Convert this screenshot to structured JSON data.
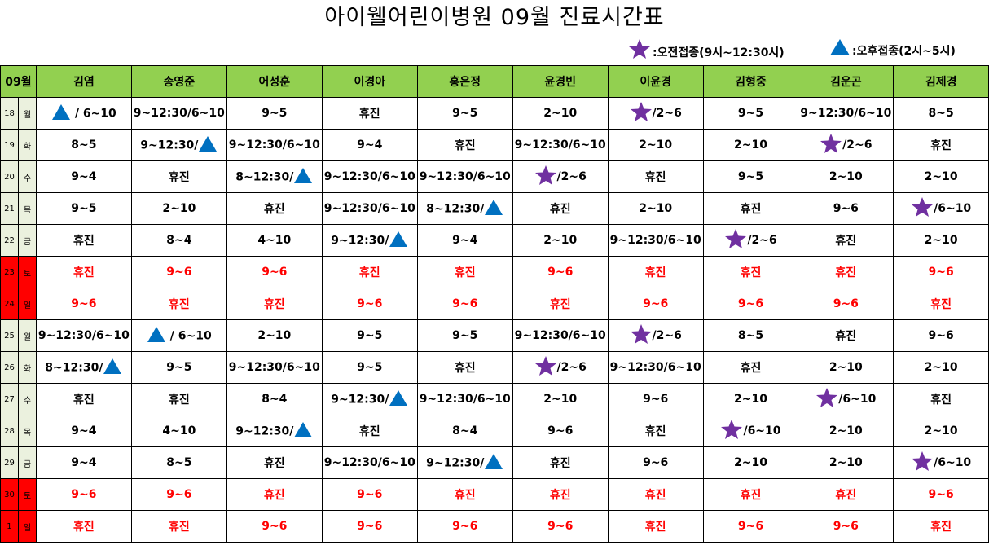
{
  "title": "아이웰어린이병원   09월   진료시간표",
  "legend": {
    "am_label": ":오전접종(9시~12:30시)",
    "pm_label": ":오후접종(2시~5시)",
    "am_icon": "star-icon",
    "pm_icon": "triangle-icon",
    "star_color": "#7030a0",
    "triangle_color": "#0070c0"
  },
  "header": {
    "month": "09월",
    "doctors": [
      "김염",
      "송영준",
      "어성훈",
      "이경아",
      "홍은정",
      "윤경빈",
      "이윤경",
      "김형중",
      "김운곤",
      "김제경"
    ]
  },
  "colors": {
    "header_bg": "#92d050",
    "weekday_bg": "#ebf1de",
    "weekend": "#ff0000"
  },
  "rows": [
    {
      "day": "18",
      "dow": "월",
      "weekend": false,
      "cells": [
        {
          "pre": "triangle",
          "text": " / 6~10"
        },
        {
          "text": "9~12:30/6~10"
        },
        {
          "text": "9~5"
        },
        {
          "text": "휴진"
        },
        {
          "text": "9~5"
        },
        {
          "text": "2~10"
        },
        {
          "pre": "star",
          "text": "/2~6"
        },
        {
          "text": "9~5"
        },
        {
          "text": "9~12:30/6~10"
        },
        {
          "text": "8~5"
        }
      ]
    },
    {
      "day": "19",
      "dow": "화",
      "weekend": false,
      "cells": [
        {
          "text": "8~5"
        },
        {
          "text": "9~12:30/",
          "post": "triangle"
        },
        {
          "text": "9~12:30/6~10"
        },
        {
          "text": "9~4"
        },
        {
          "text": "휴진"
        },
        {
          "text": "9~12:30/6~10"
        },
        {
          "text": "2~10"
        },
        {
          "text": "2~10"
        },
        {
          "pre": "star",
          "text": "/2~6"
        },
        {
          "text": "휴진"
        }
      ]
    },
    {
      "day": "20",
      "dow": "수",
      "weekend": false,
      "cells": [
        {
          "text": "9~4"
        },
        {
          "text": "휴진"
        },
        {
          "text": "8~12:30/",
          "post": "triangle"
        },
        {
          "text": "9~12:30/6~10"
        },
        {
          "text": "9~12:30/6~10"
        },
        {
          "pre": "star",
          "text": "/2~6"
        },
        {
          "text": "휴진"
        },
        {
          "text": "9~5"
        },
        {
          "text": "2~10"
        },
        {
          "text": "2~10"
        }
      ]
    },
    {
      "day": "21",
      "dow": "목",
      "weekend": false,
      "cells": [
        {
          "text": "9~5"
        },
        {
          "text": "2~10"
        },
        {
          "text": "휴진"
        },
        {
          "text": "9~12:30/6~10"
        },
        {
          "text": "8~12:30/",
          "post": "triangle"
        },
        {
          "text": "휴진"
        },
        {
          "text": "2~10"
        },
        {
          "text": "휴진"
        },
        {
          "text": "9~6"
        },
        {
          "pre": "star",
          "text": "/6~10"
        }
      ]
    },
    {
      "day": "22",
      "dow": "금",
      "weekend": false,
      "cells": [
        {
          "text": "휴진"
        },
        {
          "text": "8~4"
        },
        {
          "text": "4~10"
        },
        {
          "text": "9~12:30/",
          "post": "triangle"
        },
        {
          "text": "9~4"
        },
        {
          "text": "2~10"
        },
        {
          "text": "9~12:30/6~10"
        },
        {
          "pre": "star",
          "text": "/2~6"
        },
        {
          "text": "휴진"
        },
        {
          "text": "2~10"
        }
      ]
    },
    {
      "day": "23",
      "dow": "토",
      "weekend": true,
      "cells": [
        {
          "text": "휴진"
        },
        {
          "text": "9~6"
        },
        {
          "text": "9~6"
        },
        {
          "text": "휴진"
        },
        {
          "text": "휴진"
        },
        {
          "text": "9~6"
        },
        {
          "text": "휴진"
        },
        {
          "text": "휴진"
        },
        {
          "text": "휴진"
        },
        {
          "text": "9~6"
        }
      ]
    },
    {
      "day": "24",
      "dow": "일",
      "weekend": true,
      "cells": [
        {
          "text": "9~6"
        },
        {
          "text": "휴진"
        },
        {
          "text": "휴진"
        },
        {
          "text": "9~6"
        },
        {
          "text": "9~6"
        },
        {
          "text": "휴진"
        },
        {
          "text": "9~6"
        },
        {
          "text": "9~6"
        },
        {
          "text": "9~6"
        },
        {
          "text": "휴진"
        }
      ]
    },
    {
      "day": "25",
      "dow": "월",
      "weekend": false,
      "cells": [
        {
          "text": "9~12:30/6~10"
        },
        {
          "pre": "triangle",
          "text": " / 6~10"
        },
        {
          "text": "2~10"
        },
        {
          "text": "9~5"
        },
        {
          "text": "9~5"
        },
        {
          "text": "9~12:30/6~10"
        },
        {
          "pre": "star",
          "text": "/2~6"
        },
        {
          "text": "8~5"
        },
        {
          "text": "휴진"
        },
        {
          "text": "9~6"
        }
      ]
    },
    {
      "day": "26",
      "dow": "화",
      "weekend": false,
      "cells": [
        {
          "text": "8~12:30/",
          "post": "triangle"
        },
        {
          "text": "9~5"
        },
        {
          "text": "9~12:30/6~10"
        },
        {
          "text": "9~5"
        },
        {
          "text": "휴진"
        },
        {
          "pre": "star",
          "text": "/2~6"
        },
        {
          "text": "9~12:30/6~10"
        },
        {
          "text": "휴진"
        },
        {
          "text": "2~10"
        },
        {
          "text": "2~10"
        }
      ]
    },
    {
      "day": "27",
      "dow": "수",
      "weekend": false,
      "cells": [
        {
          "text": "휴진"
        },
        {
          "text": "휴진"
        },
        {
          "text": "8~4"
        },
        {
          "text": "9~12:30/",
          "post": "triangle"
        },
        {
          "text": "9~12:30/6~10"
        },
        {
          "text": "2~10"
        },
        {
          "text": "9~6"
        },
        {
          "text": "2~10"
        },
        {
          "pre": "star",
          "text": "/6~10"
        },
        {
          "text": "휴진"
        }
      ]
    },
    {
      "day": "28",
      "dow": "목",
      "weekend": false,
      "cells": [
        {
          "text": "9~4"
        },
        {
          "text": "4~10"
        },
        {
          "text": "9~12:30/",
          "post": "triangle"
        },
        {
          "text": "휴진"
        },
        {
          "text": "8~4"
        },
        {
          "text": "9~6"
        },
        {
          "text": "휴진"
        },
        {
          "pre": "star",
          "text": "/6~10"
        },
        {
          "text": "2~10"
        },
        {
          "text": "2~10"
        }
      ]
    },
    {
      "day": "29",
      "dow": "금",
      "weekend": false,
      "cells": [
        {
          "text": "9~4"
        },
        {
          "text": "8~5"
        },
        {
          "text": "휴진"
        },
        {
          "text": "9~12:30/6~10"
        },
        {
          "text": "9~12:30/",
          "post": "triangle"
        },
        {
          "text": "휴진"
        },
        {
          "text": "9~6"
        },
        {
          "text": "2~10"
        },
        {
          "text": "2~10"
        },
        {
          "pre": "star",
          "text": "/6~10"
        }
      ]
    },
    {
      "day": "30",
      "dow": "토",
      "weekend": true,
      "cells": [
        {
          "text": "9~6"
        },
        {
          "text": "9~6"
        },
        {
          "text": "휴진"
        },
        {
          "text": "9~6"
        },
        {
          "text": "휴진"
        },
        {
          "text": "휴진"
        },
        {
          "text": "휴진"
        },
        {
          "text": "휴진"
        },
        {
          "text": "휴진"
        },
        {
          "text": "9~6"
        }
      ]
    },
    {
      "day": "1",
      "dow": "일",
      "weekend": true,
      "cells": [
        {
          "text": "휴진"
        },
        {
          "text": "휴진"
        },
        {
          "text": "9~6"
        },
        {
          "text": "9~6"
        },
        {
          "text": "9~6"
        },
        {
          "text": "9~6"
        },
        {
          "text": "휴진"
        },
        {
          "text": "9~6"
        },
        {
          "text": "9~6"
        },
        {
          "text": "휴진"
        }
      ]
    }
  ]
}
